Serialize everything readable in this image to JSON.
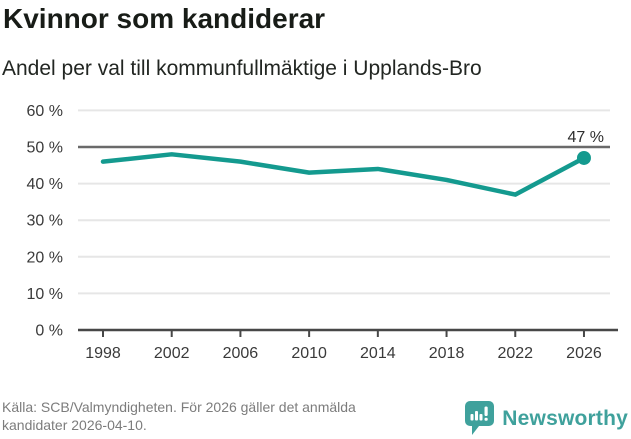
{
  "header": {
    "title": "Kvinnor som kandiderar",
    "subtitle": "Andel per val till kommunfullmäktige i Upplands-Bro"
  },
  "chart_data": {
    "type": "line",
    "title": "Kvinnor som kandiderar",
    "subtitle": "Andel per val till kommunfullmäktige i Upplands-Bro",
    "categories": [
      "1998",
      "2002",
      "2006",
      "2010",
      "2014",
      "2018",
      "2022",
      "2026"
    ],
    "values": [
      46,
      48,
      46,
      43,
      44,
      41,
      37,
      47
    ],
    "xlabel": "",
    "ylabel": "",
    "ylim": [
      0,
      60
    ],
    "yticks": [
      0,
      10,
      20,
      30,
      40,
      50,
      60
    ],
    "ytick_labels": [
      "0 %",
      "10 %",
      "20 %",
      "30 %",
      "40 %",
      "50 %",
      "60 %"
    ],
    "reference_line": 50,
    "last_point_label": "47 %",
    "grid": true,
    "legend": "none"
  },
  "footer": {
    "source_lines": [
      "Källa: SCB/Valmyndigheten. För 2026 gäller det anmälda",
      "kandidater 2026-04-10."
    ],
    "brand": "Newsworthy"
  },
  "colors": {
    "line": "#149a8f",
    "reference_line": "#6a6a6a",
    "axis": "#474747",
    "gridline": "#e6e6e6",
    "label": "#3a3a3a",
    "brand_teal": "#3fa19c"
  }
}
